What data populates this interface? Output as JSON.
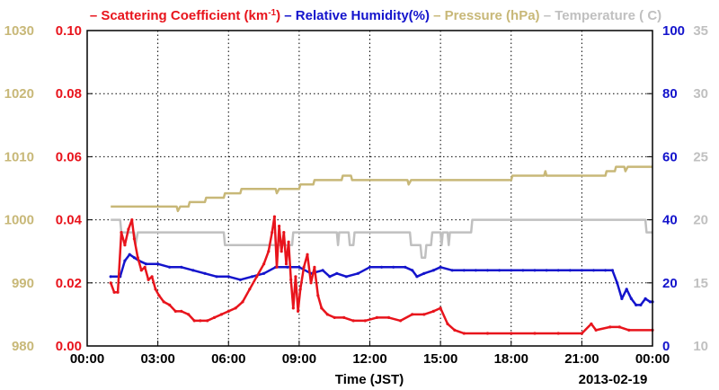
{
  "chart_data": {
    "type": "line",
    "legend_title": [
      {
        "text": "– Scattering Coefficient (km",
        "color": "#e8141c"
      },
      {
        "text": "-1",
        "color": "#e8141c",
        "sup": true
      },
      {
        "text": ")",
        "color": "#e8141c"
      },
      {
        "text": " – Relative Humidity(%)",
        "color": "#1414cc"
      },
      {
        "text": " – Pressure (hPa)",
        "color": "#c8b878"
      },
      {
        "text": " – Temperature (  C)",
        "color": "#c0c0c0"
      }
    ],
    "xlabel": "Time (JST)",
    "date_label": "2013-02-19",
    "x_range_hours": [
      0,
      24
    ],
    "x_ticks": [
      {
        "h": 0,
        "label": "00:00"
      },
      {
        "h": 3,
        "label": "03:00"
      },
      {
        "h": 6,
        "label": "06:00"
      },
      {
        "h": 9,
        "label": "09:00"
      },
      {
        "h": 12,
        "label": "12:00"
      },
      {
        "h": 15,
        "label": "15:00"
      },
      {
        "h": 18,
        "label": "18:00"
      },
      {
        "h": 21,
        "label": "21:00"
      },
      {
        "h": 24,
        "label": "00:00"
      }
    ],
    "grid": true,
    "axes": {
      "pressure": {
        "side": "far-left",
        "min": 980,
        "max": 1030,
        "ticks": [
          "980",
          "990",
          "1000",
          "1010",
          "1020",
          "1030"
        ],
        "color": "#c8b878"
      },
      "scattering": {
        "side": "left",
        "min": 0,
        "max": 0.1,
        "ticks": [
          "0.00",
          "0.02",
          "0.04",
          "0.06",
          "0.08",
          "0.10"
        ],
        "color": "#e8141c"
      },
      "humidity": {
        "side": "right",
        "min": 0,
        "max": 100,
        "ticks": [
          "0",
          "20",
          "40",
          "60",
          "80",
          "100"
        ],
        "color": "#1414cc"
      },
      "temperature": {
        "side": "far-right",
        "min": 10,
        "max": 35,
        "ticks": [
          "10",
          "15",
          "20",
          "25",
          "30",
          "35"
        ],
        "color": "#c0c0c0"
      }
    },
    "series": [
      {
        "name": "Scattering Coefficient",
        "unit": "km-1",
        "axis": "scattering",
        "color": "#e8141c",
        "markers": true,
        "points": [
          [
            1.0,
            0.02
          ],
          [
            1.15,
            0.017
          ],
          [
            1.3,
            0.017
          ],
          [
            1.45,
            0.036
          ],
          [
            1.6,
            0.032
          ],
          [
            1.75,
            0.037
          ],
          [
            1.9,
            0.04
          ],
          [
            2.0,
            0.034
          ],
          [
            2.15,
            0.028
          ],
          [
            2.3,
            0.024
          ],
          [
            2.45,
            0.025
          ],
          [
            2.6,
            0.021
          ],
          [
            2.75,
            0.022
          ],
          [
            2.9,
            0.018
          ],
          [
            3.05,
            0.016
          ],
          [
            3.25,
            0.014
          ],
          [
            3.5,
            0.013
          ],
          [
            3.75,
            0.011
          ],
          [
            4.0,
            0.011
          ],
          [
            4.3,
            0.01
          ],
          [
            4.55,
            0.008
          ],
          [
            4.8,
            0.008
          ],
          [
            5.1,
            0.008
          ],
          [
            5.4,
            0.009
          ],
          [
            5.7,
            0.01
          ],
          [
            6.0,
            0.011
          ],
          [
            6.3,
            0.012
          ],
          [
            6.6,
            0.014
          ],
          [
            6.9,
            0.018
          ],
          [
            7.2,
            0.022
          ],
          [
            7.5,
            0.026
          ],
          [
            7.7,
            0.03
          ],
          [
            7.85,
            0.036
          ],
          [
            7.95,
            0.041
          ],
          [
            8.05,
            0.025
          ],
          [
            8.15,
            0.038
          ],
          [
            8.25,
            0.03
          ],
          [
            8.35,
            0.036
          ],
          [
            8.45,
            0.026
          ],
          [
            8.55,
            0.033
          ],
          [
            8.65,
            0.021
          ],
          [
            8.75,
            0.012
          ],
          [
            8.85,
            0.022
          ],
          [
            8.95,
            0.011
          ],
          [
            9.05,
            0.018
          ],
          [
            9.2,
            0.025
          ],
          [
            9.35,
            0.029
          ],
          [
            9.5,
            0.02
          ],
          [
            9.65,
            0.025
          ],
          [
            9.8,
            0.016
          ],
          [
            9.95,
            0.012
          ],
          [
            10.2,
            0.01
          ],
          [
            10.5,
            0.009
          ],
          [
            10.9,
            0.009
          ],
          [
            11.3,
            0.008
          ],
          [
            11.8,
            0.008
          ],
          [
            12.3,
            0.009
          ],
          [
            12.8,
            0.009
          ],
          [
            13.3,
            0.008
          ],
          [
            13.8,
            0.01
          ],
          [
            14.3,
            0.01
          ],
          [
            14.7,
            0.011
          ],
          [
            15.0,
            0.012
          ],
          [
            15.3,
            0.007
          ],
          [
            15.6,
            0.005
          ],
          [
            16.0,
            0.004
          ],
          [
            17.0,
            0.004
          ],
          [
            18.0,
            0.004
          ],
          [
            19.0,
            0.004
          ],
          [
            20.0,
            0.004
          ],
          [
            21.0,
            0.004
          ],
          [
            21.4,
            0.007
          ],
          [
            21.6,
            0.005
          ],
          [
            22.2,
            0.006
          ],
          [
            22.6,
            0.006
          ],
          [
            23.0,
            0.005
          ],
          [
            24.0,
            0.005
          ]
        ]
      },
      {
        "name": "Relative Humidity",
        "unit": "%",
        "axis": "humidity",
        "color": "#1414cc",
        "markers": true,
        "points": [
          [
            1.0,
            22
          ],
          [
            1.4,
            22
          ],
          [
            1.6,
            27
          ],
          [
            1.8,
            29
          ],
          [
            2.0,
            28
          ],
          [
            2.2,
            27
          ],
          [
            2.5,
            26
          ],
          [
            3.0,
            26
          ],
          [
            3.5,
            25
          ],
          [
            4.0,
            25
          ],
          [
            4.5,
            24
          ],
          [
            5.0,
            23
          ],
          [
            5.5,
            22
          ],
          [
            6.0,
            22
          ],
          [
            6.5,
            21
          ],
          [
            7.0,
            22
          ],
          [
            7.5,
            23
          ],
          [
            8.0,
            25
          ],
          [
            8.5,
            25
          ],
          [
            9.0,
            25
          ],
          [
            9.5,
            23
          ],
          [
            10.0,
            24
          ],
          [
            10.3,
            22
          ],
          [
            10.6,
            23
          ],
          [
            11.0,
            22
          ],
          [
            11.5,
            23
          ],
          [
            12.0,
            25
          ],
          [
            12.5,
            25
          ],
          [
            13.0,
            25
          ],
          [
            13.5,
            25
          ],
          [
            13.8,
            24
          ],
          [
            14.0,
            22
          ],
          [
            14.3,
            23
          ],
          [
            14.7,
            24
          ],
          [
            15.0,
            25
          ],
          [
            15.5,
            24
          ],
          [
            16.0,
            24
          ],
          [
            16.5,
            24
          ],
          [
            17.0,
            24
          ],
          [
            17.5,
            24
          ],
          [
            18.0,
            24
          ],
          [
            18.5,
            24
          ],
          [
            19.0,
            24
          ],
          [
            19.5,
            24
          ],
          [
            20.0,
            24
          ],
          [
            20.5,
            24
          ],
          [
            21.0,
            24
          ],
          [
            21.5,
            24
          ],
          [
            22.0,
            24
          ],
          [
            22.3,
            24
          ],
          [
            22.5,
            20
          ],
          [
            22.7,
            15
          ],
          [
            22.9,
            18
          ],
          [
            23.1,
            15
          ],
          [
            23.3,
            13
          ],
          [
            23.5,
            13
          ],
          [
            23.7,
            15
          ],
          [
            23.9,
            14
          ],
          [
            24.0,
            14
          ]
        ]
      },
      {
        "name": "Pressure",
        "unit": "hPa",
        "axis": "pressure",
        "color": "#c8b878",
        "markers": false,
        "points": [
          [
            1.0,
            1002.1
          ],
          [
            3.8,
            1002.1
          ],
          [
            3.85,
            1001.4
          ],
          [
            3.95,
            1002.1
          ],
          [
            4.3,
            1002.1
          ],
          [
            4.35,
            1002.8
          ],
          [
            5.0,
            1002.8
          ],
          [
            5.05,
            1003.5
          ],
          [
            5.8,
            1003.5
          ],
          [
            5.85,
            1004.2
          ],
          [
            6.5,
            1004.2
          ],
          [
            6.55,
            1004.9
          ],
          [
            8.0,
            1004.9
          ],
          [
            8.05,
            1004.2
          ],
          [
            8.15,
            1004.9
          ],
          [
            9.0,
            1004.9
          ],
          [
            9.05,
            1005.6
          ],
          [
            9.6,
            1005.6
          ],
          [
            9.65,
            1006.3
          ],
          [
            10.8,
            1006.3
          ],
          [
            10.85,
            1007.0
          ],
          [
            11.2,
            1007.0
          ],
          [
            11.25,
            1006.3
          ],
          [
            13.6,
            1006.3
          ],
          [
            13.65,
            1005.6
          ],
          [
            13.75,
            1006.3
          ],
          [
            18.0,
            1006.3
          ],
          [
            18.05,
            1007.0
          ],
          [
            19.4,
            1007.0
          ],
          [
            19.45,
            1007.7
          ],
          [
            19.5,
            1007.0
          ],
          [
            22.0,
            1007.0
          ],
          [
            22.05,
            1007.7
          ],
          [
            22.4,
            1007.7
          ],
          [
            22.45,
            1008.4
          ],
          [
            22.8,
            1008.4
          ],
          [
            22.85,
            1007.7
          ],
          [
            22.95,
            1008.4
          ],
          [
            24.0,
            1008.4
          ]
        ]
      },
      {
        "name": "Temperature",
        "unit": "C",
        "axis": "temperature",
        "color": "#c0c0c0",
        "markers": false,
        "points": [
          [
            1.0,
            20.0
          ],
          [
            1.4,
            20.0
          ],
          [
            1.45,
            19.0
          ],
          [
            2.0,
            19.0
          ],
          [
            2.05,
            18.0
          ],
          [
            2.15,
            19.0
          ],
          [
            5.8,
            19.0
          ],
          [
            5.85,
            18.0
          ],
          [
            8.7,
            18.0
          ],
          [
            8.75,
            19.0
          ],
          [
            10.6,
            19.0
          ],
          [
            10.65,
            18.0
          ],
          [
            10.7,
            19.0
          ],
          [
            11.1,
            19.0
          ],
          [
            11.15,
            18.0
          ],
          [
            11.3,
            18.0
          ],
          [
            11.35,
            19.0
          ],
          [
            13.7,
            19.0
          ],
          [
            13.75,
            18.0
          ],
          [
            14.15,
            18.0
          ],
          [
            14.2,
            17.0
          ],
          [
            14.35,
            17.0
          ],
          [
            14.4,
            18.0
          ],
          [
            14.6,
            18.0
          ],
          [
            14.65,
            19.0
          ],
          [
            15.0,
            19.0
          ],
          [
            15.05,
            18.0
          ],
          [
            15.1,
            19.0
          ],
          [
            15.3,
            19.0
          ],
          [
            15.35,
            18.0
          ],
          [
            15.4,
            19.0
          ],
          [
            16.3,
            19.0
          ],
          [
            16.35,
            20.0
          ],
          [
            23.7,
            20.0
          ],
          [
            23.75,
            19.0
          ],
          [
            24.0,
            19.0
          ]
        ]
      }
    ]
  }
}
